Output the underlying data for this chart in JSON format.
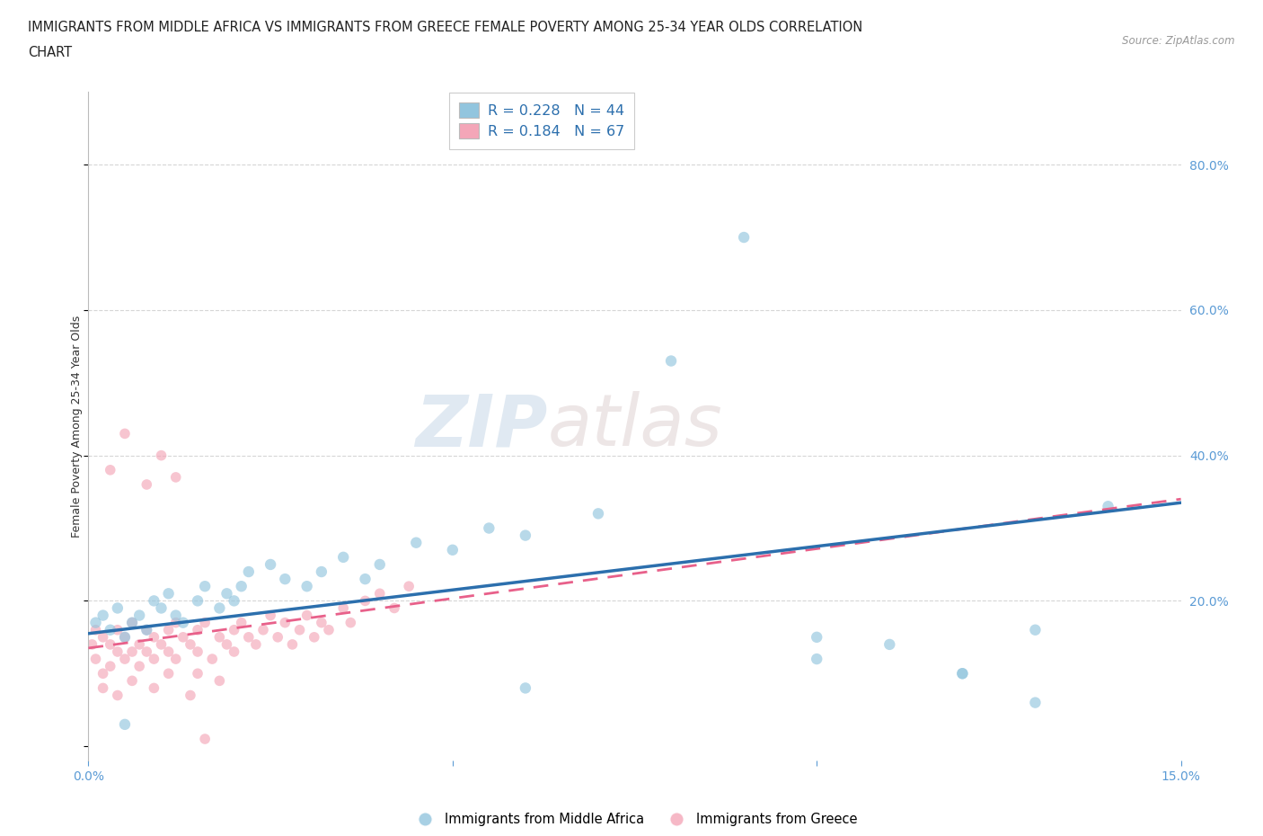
{
  "title_line1": "IMMIGRANTS FROM MIDDLE AFRICA VS IMMIGRANTS FROM GREECE FEMALE POVERTY AMONG 25-34 YEAR OLDS CORRELATION",
  "title_line2": "CHART",
  "source": "Source: ZipAtlas.com",
  "ylabel": "Female Poverty Among 25-34 Year Olds",
  "xlim": [
    0.0,
    0.15
  ],
  "ylim": [
    -0.02,
    0.9
  ],
  "grid_color": "#cccccc",
  "background_color": "#ffffff",
  "watermark_part1": "ZIP",
  "watermark_part2": "atlas",
  "blue_color": "#92c5de",
  "pink_color": "#f4a6b8",
  "blue_line_color": "#2c6fad",
  "pink_line_color": "#e8608a",
  "blue_scatter_x": [
    0.001,
    0.002,
    0.003,
    0.004,
    0.005,
    0.006,
    0.007,
    0.008,
    0.009,
    0.01,
    0.011,
    0.012,
    0.013,
    0.015,
    0.016,
    0.018,
    0.019,
    0.02,
    0.021,
    0.022,
    0.025,
    0.027,
    0.03,
    0.032,
    0.035,
    0.038,
    0.04,
    0.045,
    0.05,
    0.055,
    0.06,
    0.07,
    0.09,
    0.1,
    0.11,
    0.12,
    0.13,
    0.14,
    0.06,
    0.08,
    0.1,
    0.12,
    0.13,
    0.005
  ],
  "blue_scatter_y": [
    0.17,
    0.18,
    0.16,
    0.19,
    0.15,
    0.17,
    0.18,
    0.16,
    0.2,
    0.19,
    0.21,
    0.18,
    0.17,
    0.2,
    0.22,
    0.19,
    0.21,
    0.2,
    0.22,
    0.24,
    0.25,
    0.23,
    0.22,
    0.24,
    0.26,
    0.23,
    0.25,
    0.28,
    0.27,
    0.3,
    0.29,
    0.32,
    0.7,
    0.15,
    0.14,
    0.1,
    0.16,
    0.33,
    0.08,
    0.53,
    0.12,
    0.1,
    0.06,
    0.03
  ],
  "pink_scatter_x": [
    0.0005,
    0.001,
    0.001,
    0.002,
    0.002,
    0.003,
    0.003,
    0.004,
    0.004,
    0.005,
    0.005,
    0.006,
    0.006,
    0.007,
    0.007,
    0.008,
    0.008,
    0.009,
    0.009,
    0.01,
    0.011,
    0.011,
    0.012,
    0.012,
    0.013,
    0.014,
    0.015,
    0.015,
    0.016,
    0.017,
    0.018,
    0.019,
    0.02,
    0.02,
    0.021,
    0.022,
    0.023,
    0.024,
    0.025,
    0.026,
    0.027,
    0.028,
    0.029,
    0.03,
    0.031,
    0.032,
    0.033,
    0.035,
    0.036,
    0.038,
    0.04,
    0.042,
    0.044,
    0.003,
    0.005,
    0.008,
    0.01,
    0.012,
    0.015,
    0.018,
    0.002,
    0.004,
    0.006,
    0.009,
    0.011,
    0.014,
    0.016
  ],
  "pink_scatter_y": [
    0.14,
    0.12,
    0.16,
    0.1,
    0.15,
    0.11,
    0.14,
    0.13,
    0.16,
    0.12,
    0.15,
    0.13,
    0.17,
    0.11,
    0.14,
    0.13,
    0.16,
    0.12,
    0.15,
    0.14,
    0.16,
    0.13,
    0.17,
    0.12,
    0.15,
    0.14,
    0.16,
    0.13,
    0.17,
    0.12,
    0.15,
    0.14,
    0.16,
    0.13,
    0.17,
    0.15,
    0.14,
    0.16,
    0.18,
    0.15,
    0.17,
    0.14,
    0.16,
    0.18,
    0.15,
    0.17,
    0.16,
    0.19,
    0.17,
    0.2,
    0.21,
    0.19,
    0.22,
    0.38,
    0.43,
    0.36,
    0.4,
    0.37,
    0.1,
    0.09,
    0.08,
    0.07,
    0.09,
    0.08,
    0.1,
    0.07,
    0.01
  ]
}
